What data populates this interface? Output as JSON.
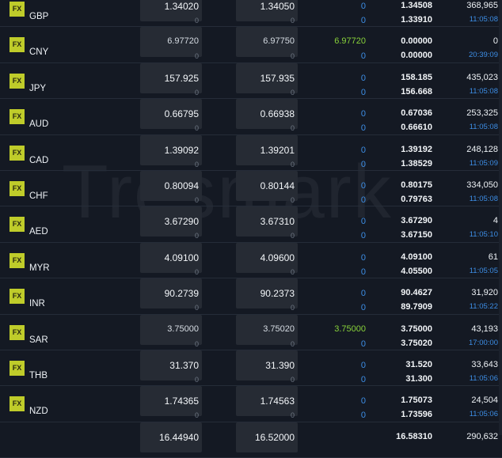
{
  "watermark": "Tresmark",
  "badge_label": "FX",
  "colors": {
    "badge": "#bfcc2a",
    "up": "#88d23a",
    "info": "#3d8ee6",
    "background": "#141923"
  },
  "rows": [
    {
      "code": "GBP",
      "bid": "1.34020",
      "bid_chg": "0",
      "ask": "1.34050",
      "ask_chg": "0",
      "last": "",
      "pct1": "0",
      "pct2": "0",
      "high": "1.34508",
      "low": "1.33910",
      "volume": "368,965",
      "time": "11:05:08"
    },
    {
      "code": "CNY",
      "bid": "6.97720",
      "bid_chg": "0",
      "ask": "6.97750",
      "ask_chg": "0",
      "last": "6.97720",
      "pct1": "",
      "pct2": "0",
      "high": "0.00000",
      "low": "0.00000",
      "volume": "0",
      "time": "20:39:09"
    },
    {
      "code": "JPY",
      "bid": "157.925",
      "bid_chg": "0",
      "ask": "157.935",
      "ask_chg": "0",
      "last": "",
      "pct1": "0",
      "pct2": "0",
      "high": "158.185",
      "low": "156.668",
      "volume": "435,023",
      "time": "11:05:08"
    },
    {
      "code": "AUD",
      "bid": "0.66795",
      "bid_chg": "0",
      "ask": "0.66938",
      "ask_chg": "0",
      "last": "",
      "pct1": "0",
      "pct2": "0",
      "high": "0.67036",
      "low": "0.66610",
      "volume": "253,325",
      "time": "11:05:08"
    },
    {
      "code": "CAD",
      "bid": "1.39092",
      "bid_chg": "0",
      "ask": "1.39201",
      "ask_chg": "0",
      "last": "",
      "pct1": "0",
      "pct2": "0",
      "high": "1.39192",
      "low": "1.38529",
      "volume": "248,128",
      "time": "11:05:09"
    },
    {
      "code": "CHF",
      "bid": "0.80094",
      "bid_chg": "0",
      "ask": "0.80144",
      "ask_chg": "0",
      "last": "",
      "pct1": "0",
      "pct2": "0",
      "high": "0.80175",
      "low": "0.79763",
      "volume": "334,050",
      "time": "11:05:08"
    },
    {
      "code": "AED",
      "bid": "3.67290",
      "bid_chg": "0",
      "ask": "3.67310",
      "ask_chg": "0",
      "last": "",
      "pct1": "0",
      "pct2": "0",
      "high": "3.67290",
      "low": "3.67150",
      "volume": "4",
      "time": "11:05:10"
    },
    {
      "code": "MYR",
      "bid": "4.09100",
      "bid_chg": "0",
      "ask": "4.09600",
      "ask_chg": "0",
      "last": "",
      "pct1": "0",
      "pct2": "0",
      "high": "4.09100",
      "low": "4.05500",
      "volume": "61",
      "time": "11:05:05"
    },
    {
      "code": "INR",
      "bid": "90.2739",
      "bid_chg": "0",
      "ask": "90.2373",
      "ask_chg": "0",
      "last": "",
      "pct1": "0",
      "pct2": "0",
      "high": "90.4627",
      "low": "89.7909",
      "volume": "31,920",
      "time": "11:05:22"
    },
    {
      "code": "SAR",
      "bid": "3.75000",
      "bid_chg": "0",
      "ask": "3.75020",
      "ask_chg": "0",
      "last": "3.75000",
      "pct1": "",
      "pct2": "0",
      "high": "3.75000",
      "low": "3.75020",
      "volume": "43,193",
      "time": "17:00:00"
    },
    {
      "code": "THB",
      "bid": "31.370",
      "bid_chg": "0",
      "ask": "31.390",
      "ask_chg": "0",
      "last": "",
      "pct1": "0",
      "pct2": "0",
      "high": "31.520",
      "low": "31.300",
      "volume": "33,643",
      "time": "11:05:06"
    },
    {
      "code": "NZD",
      "bid": "1.74365",
      "bid_chg": "0",
      "ask": "1.74563",
      "ask_chg": "0",
      "last": "",
      "pct1": "0",
      "pct2": "0",
      "high": "1.75073",
      "low": "1.73596",
      "volume": "24,504",
      "time": "11:05:06"
    },
    {
      "code": "",
      "bid": "16.44940",
      "bid_chg": "",
      "ask": "16.52000",
      "ask_chg": "",
      "last": "",
      "pct1": "",
      "pct2": "",
      "high": "16.58310",
      "low": "",
      "volume": "290,632",
      "time": ""
    }
  ]
}
